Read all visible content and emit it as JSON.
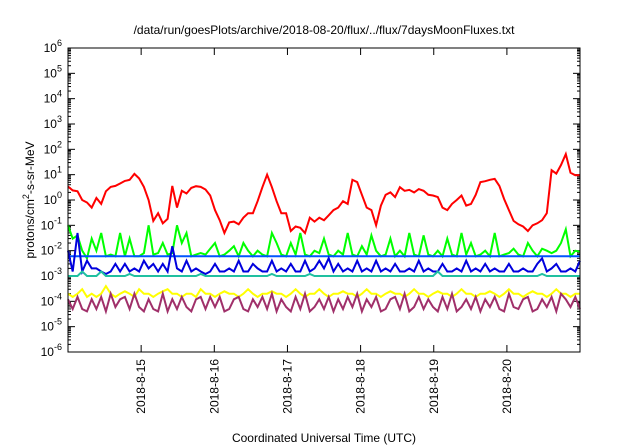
{
  "chart_data": {
    "type": "line",
    "title": "/data/run/goesPlots/archive/2018-08-20/flux/../flux/7daysMoonFluxes.txt",
    "xlabel": "Coordinated Universal Time (UTC)",
    "ylabel": "protons/cm2-s-sr-MeV",
    "y_scale": "log",
    "ylim": [
      1e-06,
      1000000.0
    ],
    "y_tick_labels": [
      {
        "base": "10",
        "exp": "-6"
      },
      {
        "base": "10",
        "exp": "-5"
      },
      {
        "base": "10",
        "exp": "-4"
      },
      {
        "base": "10",
        "exp": "-3"
      },
      {
        "base": "10",
        "exp": "-2"
      },
      {
        "base": "10",
        "exp": "-1"
      },
      {
        "base": "10",
        "exp": "0"
      },
      {
        "base": "10",
        "exp": "1"
      },
      {
        "base": "10",
        "exp": "2"
      },
      {
        "base": "10",
        "exp": "3"
      },
      {
        "base": "10",
        "exp": "4"
      },
      {
        "base": "10",
        "exp": "5"
      },
      {
        "base": "10",
        "exp": "6"
      }
    ],
    "xlim": [
      "2018-08-14 00:00",
      "2018-08-20 23:59"
    ],
    "x_tick_labels": [
      "2018-8-15",
      "2018-8-16",
      "2018-8-17",
      "2018-8-18",
      "2018-8-19",
      "2018-8-20"
    ],
    "x_tick_values": [
      "2018-08-15",
      "2018-08-16",
      "2018-08-17",
      "2018-08-18",
      "2018-08-19",
      "2018-08-20"
    ],
    "grid": false,
    "legend": "none",
    "series": [
      {
        "color": "#ff0000",
        "values": [
          3.4,
          2.4,
          2.2,
          1.0,
          0.8,
          0.5,
          1.2,
          0.7,
          2.2,
          3.3,
          3.6,
          4.5,
          5.7,
          6.2,
          10.7,
          7.1,
          3.3,
          1.0,
          0.15,
          0.3,
          0.12,
          0.18,
          3.6,
          0.5,
          2.3,
          1.8,
          3.0,
          3.5,
          3.3,
          2.6,
          1.5,
          0.4,
          0.16,
          0.05,
          0.13,
          0.14,
          0.11,
          0.2,
          0.3,
          0.3,
          0.9,
          3.2,
          10.0,
          3.2,
          0.9,
          0.3,
          0.3,
          0.06,
          0.09,
          0.08,
          0.05,
          0.2,
          0.14,
          0.2,
          0.16,
          0.25,
          0.4,
          0.5,
          0.9,
          0.7,
          6.3,
          5.1,
          1.6,
          0.5,
          0.4,
          0.1,
          0.6,
          1.6,
          2.0,
          1.3,
          3.2,
          2.3,
          2.5,
          2.0,
          2.7,
          2.3,
          1.6,
          1.5,
          1.3,
          0.5,
          0.4,
          0.7,
          1.0,
          1.5,
          0.6,
          0.7,
          1.6,
          5.1,
          5.5,
          6.3,
          6.8,
          3.6,
          1.1,
          0.4,
          0.15,
          0.11,
          0.09,
          0.06,
          0.1,
          0.12,
          0.16,
          0.3,
          15.0,
          11.0,
          24.0,
          65.0,
          12.0,
          9.5,
          9.6
        ]
      },
      {
        "color": "#00ff00",
        "values": [
          0.1,
          0.03,
          0.04,
          0.01,
          0.005,
          0.03,
          0.01,
          0.05,
          0.006,
          0.007,
          0.006,
          0.05,
          0.006,
          0.03,
          0.006,
          0.006,
          0.008,
          0.1,
          0.007,
          0.008,
          0.02,
          0.007,
          0.008,
          0.1,
          0.02,
          0.05,
          0.006,
          0.007,
          0.008,
          0.007,
          0.012,
          0.02,
          0.006,
          0.007,
          0.01,
          0.015,
          0.006,
          0.02,
          0.01,
          0.006,
          0.01,
          0.007,
          0.006,
          0.05,
          0.02,
          0.007,
          0.006,
          0.02,
          0.007,
          0.05,
          0.007,
          0.006,
          0.01,
          0.008,
          0.03,
          0.007,
          0.006,
          0.01,
          0.007,
          0.05,
          0.007,
          0.006,
          0.015,
          0.007,
          0.04,
          0.01,
          0.006,
          0.007,
          0.03,
          0.006,
          0.01,
          0.006,
          0.05,
          0.007,
          0.006,
          0.04,
          0.007,
          0.006,
          0.01,
          0.006,
          0.03,
          0.007,
          0.006,
          0.05,
          0.007,
          0.02,
          0.006,
          0.007,
          0.01,
          0.006,
          0.05,
          0.006,
          0.007,
          0.008,
          0.012,
          0.007,
          0.006,
          0.02,
          0.01,
          0.006,
          0.012,
          0.01,
          0.008,
          0.01,
          0.02,
          0.07,
          0.006,
          0.01,
          0.009
        ]
      },
      {
        "color": "#0055ff",
        "values": [
          0.006,
          0.006,
          0.006,
          0.006,
          0.006,
          0.006,
          0.006,
          0.006,
          0.006,
          0.006,
          0.006,
          0.006,
          0.006,
          0.006,
          0.006,
          0.006,
          0.006,
          0.006,
          0.006,
          0.006,
          0.006,
          0.006,
          0.006,
          0.006,
          0.006,
          0.006,
          0.006,
          0.006,
          0.006,
          0.006,
          0.006,
          0.006,
          0.006,
          0.006,
          0.006,
          0.006,
          0.006,
          0.006,
          0.006,
          0.006,
          0.006,
          0.006,
          0.006,
          0.006,
          0.006,
          0.006,
          0.006,
          0.006,
          0.006,
          0.006,
          0.006,
          0.006,
          0.006,
          0.006,
          0.006,
          0.006,
          0.006,
          0.006,
          0.006,
          0.006,
          0.006,
          0.006,
          0.006,
          0.006,
          0.006,
          0.006,
          0.006,
          0.006,
          0.006,
          0.006,
          0.006,
          0.006,
          0.006,
          0.006,
          0.006,
          0.006,
          0.006,
          0.006,
          0.006,
          0.006,
          0.006,
          0.006,
          0.006,
          0.006,
          0.006,
          0.006,
          0.006,
          0.006,
          0.006,
          0.006,
          0.006,
          0.006,
          0.006,
          0.006,
          0.006,
          0.006,
          0.006,
          0.006,
          0.006,
          0.006,
          0.006,
          0.006,
          0.006,
          0.006,
          0.006,
          0.006,
          0.006,
          0.006,
          0.006
        ]
      },
      {
        "color": "#0000dd",
        "values": [
          0.01,
          0.0015,
          0.05,
          0.0015,
          0.004,
          0.002,
          0.002,
          0.0015,
          0.0012,
          0.0015,
          0.003,
          0.0015,
          0.003,
          0.0015,
          0.002,
          0.0015,
          0.004,
          0.002,
          0.003,
          0.0015,
          0.003,
          0.0015,
          0.015,
          0.002,
          0.0015,
          0.004,
          0.0015,
          0.002,
          0.0015,
          0.0012,
          0.0015,
          0.003,
          0.0015,
          0.0015,
          0.002,
          0.0015,
          0.004,
          0.0015,
          0.0015,
          0.003,
          0.002,
          0.0015,
          0.0015,
          0.004,
          0.0015,
          0.002,
          0.0015,
          0.003,
          0.0015,
          0.0015,
          0.004,
          0.0015,
          0.002,
          0.004,
          0.002,
          0.005,
          0.0015,
          0.003,
          0.0015,
          0.002,
          0.0015,
          0.004,
          0.0015,
          0.002,
          0.0015,
          0.004,
          0.0015,
          0.002,
          0.0015,
          0.003,
          0.0015,
          0.0015,
          0.002,
          0.0015,
          0.004,
          0.0015,
          0.002,
          0.0015,
          0.0015,
          0.003,
          0.0015,
          0.0015,
          0.002,
          0.0015,
          0.004,
          0.0015,
          0.002,
          0.0015,
          0.003,
          0.0015,
          0.002,
          0.0015,
          0.0015,
          0.003,
          0.0015,
          0.0015,
          0.002,
          0.0015,
          0.0015,
          0.003,
          0.005,
          0.0015,
          0.002,
          0.003,
          0.0015,
          0.0015,
          0.002,
          0.0015,
          0.004
        ]
      },
      {
        "color": "#20c0a0",
        "values": [
          0.001,
          0.001,
          0.001,
          0.0015,
          0.001,
          0.001,
          0.001,
          0.0015,
          0.001,
          0.001,
          0.001,
          0.001,
          0.001,
          0.0012,
          0.001,
          0.001,
          0.001,
          0.001,
          0.001,
          0.001,
          0.001,
          0.001,
          0.001,
          0.001,
          0.001,
          0.001,
          0.001,
          0.001,
          0.0012,
          0.001,
          0.001,
          0.001,
          0.001,
          0.001,
          0.001,
          0.001,
          0.001,
          0.001,
          0.001,
          0.001,
          0.001,
          0.001,
          0.001,
          0.0012,
          0.001,
          0.001,
          0.001,
          0.001,
          0.001,
          0.001,
          0.001,
          0.0012,
          0.001,
          0.001,
          0.001,
          0.001,
          0.001,
          0.001,
          0.001,
          0.001,
          0.001,
          0.001,
          0.001,
          0.001,
          0.001,
          0.001,
          0.001,
          0.001,
          0.001,
          0.001,
          0.001,
          0.001,
          0.001,
          0.001,
          0.001,
          0.001,
          0.001,
          0.001,
          0.0015,
          0.001,
          0.001,
          0.001,
          0.001,
          0.001,
          0.001,
          0.001,
          0.001,
          0.001,
          0.001,
          0.001,
          0.001,
          0.001,
          0.001,
          0.001,
          0.001,
          0.001,
          0.001,
          0.001,
          0.001,
          0.001,
          0.0012,
          0.001,
          0.001,
          0.001,
          0.001,
          0.001,
          0.001,
          0.001,
          0.001
        ]
      },
      {
        "color": "#ffff00",
        "values": [
          0.0002,
          0.00015,
          0.0002,
          0.0003,
          0.00015,
          0.0002,
          0.00015,
          0.0002,
          0.0004,
          0.0002,
          0.00015,
          0.0002,
          0.00025,
          0.0002,
          0.00015,
          0.0003,
          0.0002,
          0.0002,
          0.00015,
          0.0002,
          0.00025,
          0.0003,
          0.0002,
          0.0002,
          0.00015,
          0.0002,
          0.0002,
          0.00015,
          0.0003,
          0.0002,
          0.0002,
          0.00015,
          0.0002,
          0.00025,
          0.0002,
          0.0002,
          0.00015,
          0.0002,
          0.0003,
          0.0002,
          0.00015,
          0.0002,
          0.0002,
          0.00025,
          0.0002,
          0.0002,
          0.00015,
          0.0002,
          0.0003,
          0.0002,
          0.00015,
          0.0002,
          0.0002,
          0.0003,
          0.0002,
          0.00015,
          0.0002,
          0.0002,
          0.00025,
          0.0002,
          0.0002,
          0.00015,
          0.0002,
          0.0003,
          0.0002,
          0.0002,
          0.00015,
          0.0002,
          0.00025,
          0.0002,
          0.0002,
          0.00015,
          0.0002,
          0.0003,
          0.0002,
          0.0002,
          0.00015,
          0.0002,
          0.00025,
          0.0002,
          0.0002,
          0.00015,
          0.0002,
          0.0003,
          0.0002,
          0.0002,
          0.00015,
          0.0002,
          0.0002,
          0.00025,
          0.0002,
          0.00015,
          0.0002,
          0.0003,
          0.0002,
          0.0002,
          0.00015,
          0.0002,
          0.00025,
          0.0002,
          0.0002,
          0.00015,
          0.0002,
          0.0003,
          0.0002,
          0.0002,
          0.00015,
          0.0002,
          0.0002
        ]
      },
      {
        "color": "#a0306a",
        "values": [
          0.00012,
          5e-05,
          0.00015,
          5e-05,
          4e-05,
          0.00012,
          5e-05,
          0.00015,
          4e-05,
          0.0002,
          6e-05,
          0.00012,
          0.00015,
          5e-05,
          0.0002,
          6e-05,
          4e-05,
          0.00012,
          5e-05,
          4e-05,
          0.0002,
          4e-05,
          0.00012,
          5e-05,
          0.00015,
          6e-05,
          4e-05,
          0.00012,
          0.00015,
          5e-05,
          0.00015,
          6e-05,
          0.00015,
          4e-05,
          5e-05,
          0.00012,
          0.00015,
          5e-05,
          4e-05,
          0.00012,
          6e-05,
          0.00015,
          5e-05,
          0.0002,
          4e-05,
          0.00012,
          6e-05,
          4e-05,
          0.00015,
          5e-05,
          0.0002,
          4e-05,
          6e-05,
          0.00012,
          5e-05,
          0.00015,
          4e-05,
          0.00012,
          5e-05,
          0.00015,
          6e-05,
          0.0002,
          4e-05,
          0.00012,
          6e-05,
          0.00015,
          4e-05,
          5e-05,
          0.00012,
          0.00015,
          5e-05,
          0.0002,
          4e-05,
          6e-05,
          0.00015,
          5e-05,
          0.00012,
          6e-05,
          4e-05,
          0.00015,
          5e-05,
          0.0002,
          4e-05,
          6e-05,
          0.00012,
          5e-05,
          0.00015,
          4e-05,
          0.00012,
          6e-05,
          0.00015,
          5e-05,
          4e-05,
          0.0002,
          6e-05,
          5e-05,
          0.00012,
          0.00015,
          4e-05,
          5e-05,
          0.00012,
          6e-05,
          0.00015,
          4e-05,
          0.0002,
          0.00012,
          6e-05,
          0.00015,
          5e-05
        ]
      }
    ]
  }
}
